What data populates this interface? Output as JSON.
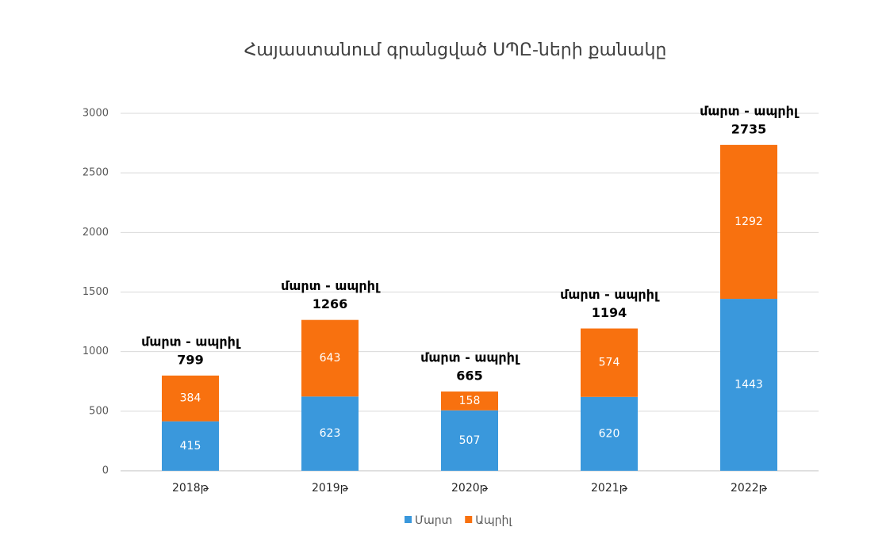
{
  "chart_data": {
    "type": "stacked_bar",
    "title": "Հայաստանում գրանցված ՍՊԸ-ների քանակը",
    "categories": [
      "2018թ",
      "2019թ",
      "2020թ",
      "2021թ",
      "2022թ"
    ],
    "series": [
      {
        "name": "Մարտ",
        "color": "#3a98dc",
        "values": [
          415,
          623,
          507,
          620,
          1443
        ]
      },
      {
        "name": "Ապրիլ",
        "color": "#f8710f",
        "values": [
          384,
          643,
          158,
          574,
          1292
        ]
      }
    ],
    "total_labels": [
      "մարտ - ապրիլ",
      "մարտ - ապրիլ",
      "մարտ - ապրիլ",
      "մարտ - ապրիլ",
      "մարտ - ապրիլ"
    ],
    "totals": [
      799,
      1266,
      665,
      1194,
      2735
    ],
    "ylim": [
      0,
      3000
    ],
    "yticks": [
      0,
      500,
      1000,
      1500,
      2000,
      2500,
      3000
    ],
    "grid": true,
    "legend": "bottom"
  }
}
